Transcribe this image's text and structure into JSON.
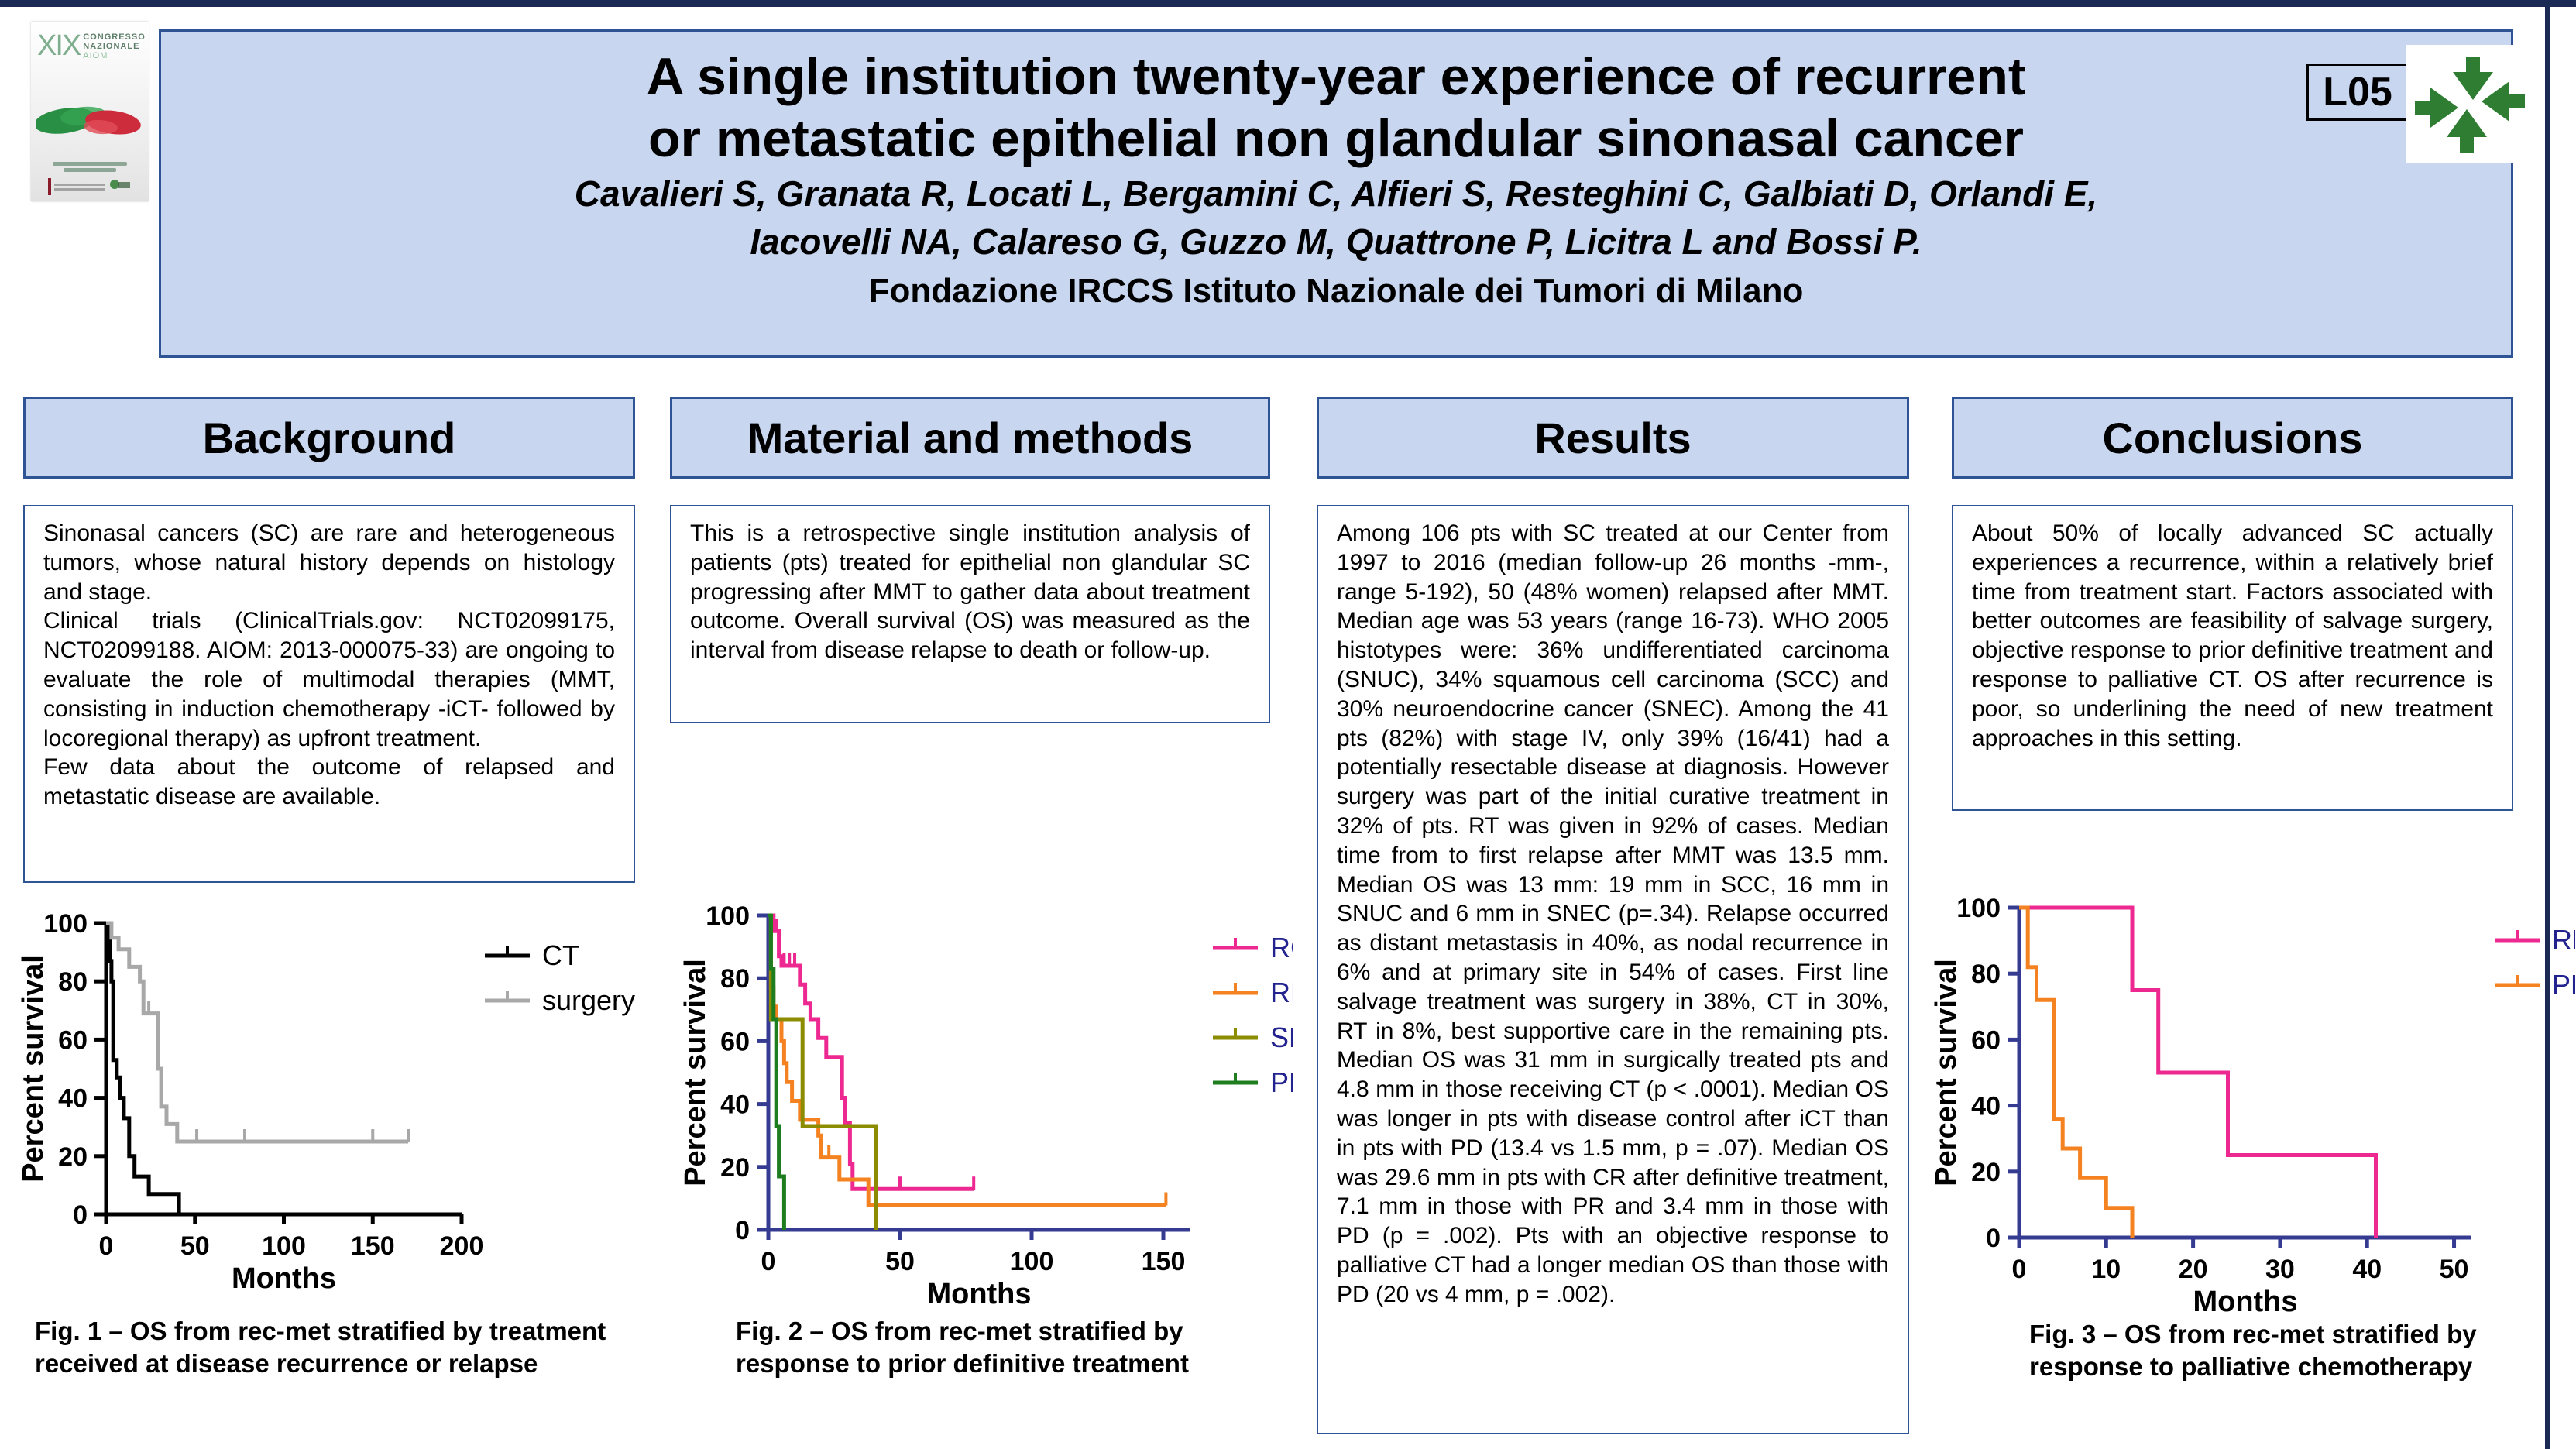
{
  "header": {
    "badge": "L05",
    "title_line1": "A single institution twenty-year experience of recurrent",
    "title_line2": "or metastatic epithelial non glandular sinonasal cancer",
    "authors_line1": "Cavalieri S, Granata R, Locati L, Bergamini C, Alfieri S, Resteghini C, Galbiati D, Orlandi E,",
    "authors_line2": "Iacovelli NA, Calareso G, Guzzo M, Quattrone P, Licitra L and Bossi P.",
    "affiliation": "Fondazione IRCCS Istituto Nazionale dei Tumori di Milano"
  },
  "congress_logo": {
    "numeral": "XIX",
    "line1": "CONGRESSO",
    "line2": "NAZIONALE",
    "line3": "AIOM"
  },
  "sections": {
    "background": {
      "heading": "Background",
      "body": "Sinonasal cancers (SC) are rare and heterogeneous tumors, whose natural history depends on histology and stage.\nClinical trials (ClinicalTrials.gov: NCT02099175, NCT02099188. AIOM: 2013-000075-33) are ongoing to evaluate the role of multimodal therapies (MMT, consisting in induction chemotherapy -iCT- followed by locoregional therapy) as upfront treatment.\nFew data about the outcome of relapsed and metastatic disease are available."
    },
    "methods": {
      "heading": "Material and methods",
      "body": "This is a retrospective single institution analysis of patients (pts) treated for epithelial non glandular SC progressing after MMT to gather data about treatment outcome. Overall survival (OS) was measured as the interval from disease relapse to death or follow-up."
    },
    "results": {
      "heading": "Results",
      "body": "Among 106 pts with SC treated at our Center from 1997 to 2016 (median follow-up 26 months -mm-, range 5-192), 50 (48% women) relapsed after MMT. Median age was 53 years (range 16-73). WHO 2005 histotypes were: 36% undifferentiated carcinoma (SNUC), 34% squamous cell carcinoma (SCC) and 30% neuroendocrine cancer (SNEC). Among the 41 pts (82%) with stage IV, only 39% (16/41) had a potentially resectable disease at diagnosis. However surgery was part of the initial curative treatment in 32% of pts. RT was given in 92% of cases. Median time from to first relapse after MMT was 13.5 mm. Median OS was 13 mm: 19 mm in SCC, 16 mm in SNUC and 6 mm in SNEC (p=.34). Relapse occurred as distant metastasis in 40%, as nodal recurrence in 6% and at primary site in 54% of cases. First line salvage treatment was surgery in 38%, CT in 30%, RT in 8%, best supportive care in the remaining pts. Median OS was 31 mm in surgically treated pts and 4.8 mm in those receiving CT (p < .0001). Median OS was longer in pts with disease control after iCT than in pts with PD (13.4 vs 1.5 mm, p = .07). Median OS was 29.6 mm in pts with CR after definitive treatment, 7.1 mm in those with PR and 3.4 mm in those with PD (p = .002). Pts with an objective response to palliative CT had a longer median OS than those with PD (20 vs 4 mm, p = .002)."
    },
    "conclusions": {
      "heading": "Conclusions",
      "body": "About 50% of locally advanced SC actually experiences a recurrence, within a relatively brief time from treatment start. Factors associated with better outcomes are feasibility of salvage surgery, objective response to prior definitive treatment and response to palliative CT. OS after recurrence is poor, so underlining the need of new treatment approaches in this setting."
    }
  },
  "figures": {
    "fig1_caption": "Fig. 1 – OS from rec-met stratified by treatment\nreceived at disease recurrence or relapse",
    "fig2_caption": "Fig. 2 – OS from rec-met stratified by\nresponse to prior definitive treatment",
    "fig3_caption": "Fig. 3 – OS from rec-met stratified by\nresponse to palliative chemotherapy"
  },
  "colors": {
    "header_fill": "#C8D6EF",
    "box_border": "#2F5496",
    "frame_navy": "#1B2A55",
    "black": "#000000",
    "gray": "#A8A8A8",
    "magenta": "#ED2891",
    "orange": "#F58220",
    "olive": "#8C8C00",
    "green": "#1E7D1E",
    "navy_axis": "#353B91",
    "legend_text_navy": "#23238F",
    "logo_green": "#2E7D32"
  },
  "chart_data": [
    {
      "id": "fig1",
      "type": "line",
      "km_style": true,
      "title": "",
      "xlabel": "Months",
      "ylabel": "Percent survival",
      "xlim": [
        0,
        200
      ],
      "ylim": [
        0,
        100
      ],
      "xticks": [
        0,
        50,
        100,
        150,
        200
      ],
      "yticks": [
        0,
        20,
        40,
        60,
        80,
        100
      ],
      "grid": false,
      "axis_color": "#000000",
      "legend_text_color": "#000000",
      "legend_position": "right",
      "series": [
        {
          "name": "CT",
          "color": "#000000",
          "points": [
            [
              0,
              100
            ],
            [
              2,
              100
            ],
            [
              2,
              87
            ],
            [
              3,
              87
            ],
            [
              3,
              80
            ],
            [
              4,
              80
            ],
            [
              4,
              53
            ],
            [
              6,
              53
            ],
            [
              6,
              47
            ],
            [
              8,
              47
            ],
            [
              8,
              40
            ],
            [
              10,
              40
            ],
            [
              10,
              33
            ],
            [
              13,
              33
            ],
            [
              13,
              20
            ],
            [
              16,
              20
            ],
            [
              16,
              13
            ],
            [
              24,
              13
            ],
            [
              24,
              7
            ],
            [
              41,
              7
            ],
            [
              41,
              0
            ]
          ],
          "censors": [
            [
              2,
              87
            ]
          ]
        },
        {
          "name": "surgery",
          "color": "#A8A8A8",
          "points": [
            [
              0,
              100
            ],
            [
              3,
              100
            ],
            [
              3,
              95
            ],
            [
              7,
              95
            ],
            [
              7,
              91
            ],
            [
              13,
              91
            ],
            [
              13,
              85
            ],
            [
              19,
              85
            ],
            [
              19,
              80
            ],
            [
              21,
              80
            ],
            [
              21,
              69
            ],
            [
              29,
              69
            ],
            [
              29,
              50
            ],
            [
              31,
              50
            ],
            [
              31,
              37
            ],
            [
              34,
              37
            ],
            [
              34,
              31
            ],
            [
              40,
              31
            ],
            [
              40,
              25
            ],
            [
              170,
              25
            ]
          ],
          "censors": [
            [
              24,
              69
            ],
            [
              51,
              25
            ],
            [
              78,
              25
            ],
            [
              150,
              25
            ],
            [
              170,
              25
            ]
          ]
        }
      ]
    },
    {
      "id": "fig2",
      "type": "line",
      "km_style": true,
      "title": "",
      "xlabel": "Months",
      "ylabel": "Percent survival",
      "xlim": [
        0,
        160
      ],
      "ylim": [
        0,
        100
      ],
      "xticks": [
        0,
        50,
        100,
        150
      ],
      "yticks": [
        0,
        20,
        40,
        60,
        80,
        100
      ],
      "grid": false,
      "axis_color": "#353B91",
      "legend_text_color": "#23238F",
      "legend_position": "right",
      "series": [
        {
          "name": "RC",
          "color": "#ED2891",
          "points": [
            [
              0,
              100
            ],
            [
              2,
              100
            ],
            [
              2,
              95
            ],
            [
              4,
              95
            ],
            [
              4,
              87
            ],
            [
              5,
              87
            ],
            [
              5,
              84
            ],
            [
              12,
              84
            ],
            [
              12,
              78
            ],
            [
              14,
              78
            ],
            [
              14,
              72
            ],
            [
              16,
              72
            ],
            [
              16,
              67
            ],
            [
              19,
              67
            ],
            [
              19,
              61
            ],
            [
              22,
              61
            ],
            [
              22,
              55
            ],
            [
              28,
              55
            ],
            [
              28,
              42
            ],
            [
              29,
              42
            ],
            [
              29,
              34
            ],
            [
              31,
              34
            ],
            [
              31,
              21
            ],
            [
              32,
              21
            ],
            [
              32,
              13
            ],
            [
              78,
              13
            ]
          ],
          "censors": [
            [
              3,
              95
            ],
            [
              6,
              84
            ],
            [
              8,
              84
            ],
            [
              10,
              84
            ],
            [
              50,
              13
            ],
            [
              78,
              13
            ]
          ]
        },
        {
          "name": "RP",
          "color": "#F58220",
          "points": [
            [
              0,
              100
            ],
            [
              1,
              100
            ],
            [
              1,
              77
            ],
            [
              2,
              77
            ],
            [
              2,
              71
            ],
            [
              3,
              71
            ],
            [
              3,
              67
            ],
            [
              5,
              67
            ],
            [
              5,
              60
            ],
            [
              6,
              60
            ],
            [
              6,
              53
            ],
            [
              7,
              53
            ],
            [
              7,
              47
            ],
            [
              9,
              47
            ],
            [
              9,
              41
            ],
            [
              12,
              41
            ],
            [
              12,
              35
            ],
            [
              19,
              35
            ],
            [
              19,
              30
            ],
            [
              20,
              30
            ],
            [
              20,
              23
            ],
            [
              27,
              23
            ],
            [
              27,
              16
            ],
            [
              38,
              16
            ],
            [
              38,
              8
            ],
            [
              151,
              8
            ]
          ],
          "censors": [
            [
              23,
              23
            ],
            [
              151,
              8
            ]
          ]
        },
        {
          "name": "SD",
          "color": "#8C8C00",
          "points": [
            [
              0,
              100
            ],
            [
              1,
              100
            ],
            [
              1,
              67
            ],
            [
              13,
              67
            ],
            [
              13,
              33
            ],
            [
              41,
              33
            ],
            [
              41,
              0
            ]
          ],
          "censors": []
        },
        {
          "name": "PD",
          "color": "#1E7D1E",
          "points": [
            [
              0,
              100
            ],
            [
              1,
              100
            ],
            [
              1,
              83
            ],
            [
              2,
              83
            ],
            [
              2,
              67
            ],
            [
              3,
              67
            ],
            [
              3,
              33
            ],
            [
              4,
              33
            ],
            [
              4,
              17
            ],
            [
              6,
              17
            ],
            [
              6,
              0
            ]
          ],
          "censors": []
        }
      ]
    },
    {
      "id": "fig3",
      "type": "line",
      "km_style": true,
      "title": "",
      "xlabel": "Months",
      "ylabel": "Percent survival",
      "xlim": [
        0,
        52
      ],
      "ylim": [
        0,
        100
      ],
      "xticks": [
        0,
        10,
        20,
        30,
        40,
        50
      ],
      "yticks": [
        0,
        20,
        40,
        60,
        80,
        100
      ],
      "grid": false,
      "axis_color": "#353B91",
      "legend_text_color": "#23238F",
      "legend_position": "right",
      "series": [
        {
          "name": "RP",
          "color": "#ED2891",
          "points": [
            [
              0,
              100
            ],
            [
              13,
              100
            ],
            [
              13,
              75
            ],
            [
              16,
              75
            ],
            [
              16,
              50
            ],
            [
              24,
              50
            ],
            [
              24,
              25
            ],
            [
              41,
              25
            ],
            [
              41,
              0
            ]
          ],
          "censors": []
        },
        {
          "name": "PD",
          "color": "#F58220",
          "points": [
            [
              0,
              100
            ],
            [
              1,
              100
            ],
            [
              1,
              82
            ],
            [
              2,
              82
            ],
            [
              2,
              72
            ],
            [
              4,
              72
            ],
            [
              4,
              36
            ],
            [
              5,
              36
            ],
            [
              5,
              27
            ],
            [
              7,
              27
            ],
            [
              7,
              18
            ],
            [
              10,
              18
            ],
            [
              10,
              9
            ],
            [
              13,
              9
            ],
            [
              13,
              0
            ]
          ],
          "censors": []
        }
      ]
    }
  ]
}
